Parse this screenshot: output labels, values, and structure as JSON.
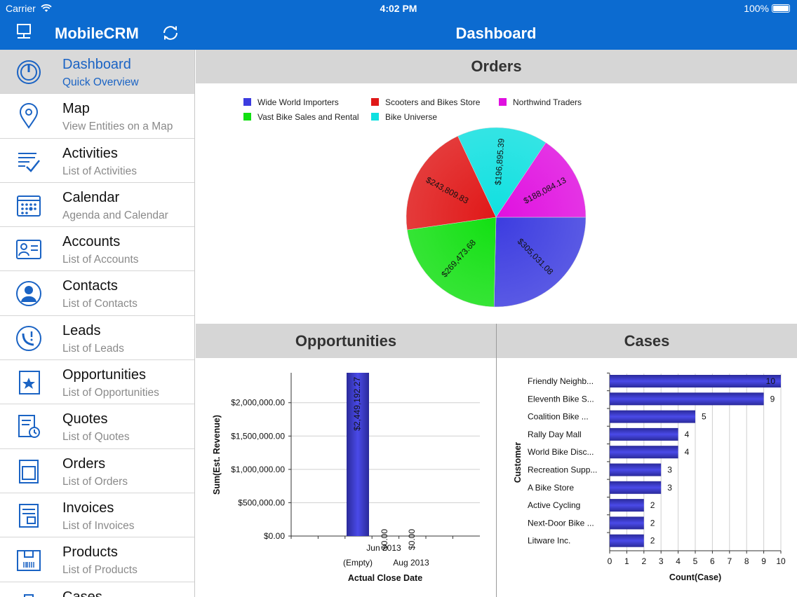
{
  "status": {
    "carrier": "Carrier",
    "time": "4:02 PM",
    "battery": "100%"
  },
  "nav": {
    "app_name": "MobileCRM",
    "page_title": "Dashboard"
  },
  "sidebar": {
    "items": [
      {
        "title": "Dashboard",
        "subtitle": "Quick Overview",
        "icon": "dashboard-icon"
      },
      {
        "title": "Map",
        "subtitle": "View Entities on a Map",
        "icon": "map-pin-icon"
      },
      {
        "title": "Activities",
        "subtitle": "List of Activities",
        "icon": "activities-icon"
      },
      {
        "title": "Calendar",
        "subtitle": "Agenda and Calendar",
        "icon": "calendar-icon"
      },
      {
        "title": "Accounts",
        "subtitle": "List of Accounts",
        "icon": "accounts-icon"
      },
      {
        "title": "Contacts",
        "subtitle": "List of Contacts",
        "icon": "contact-icon"
      },
      {
        "title": "Leads",
        "subtitle": "List of Leads",
        "icon": "leads-icon"
      },
      {
        "title": "Opportunities",
        "subtitle": "List of Opportunities",
        "icon": "opportunities-icon"
      },
      {
        "title": "Quotes",
        "subtitle": "List of Quotes",
        "icon": "quotes-icon"
      },
      {
        "title": "Orders",
        "subtitle": "List of Orders",
        "icon": "orders-icon"
      },
      {
        "title": "Invoices",
        "subtitle": "List of Invoices",
        "icon": "invoices-icon"
      },
      {
        "title": "Products",
        "subtitle": "List of Products",
        "icon": "products-icon"
      },
      {
        "title": "Cases",
        "subtitle": "",
        "icon": "cases-icon"
      }
    ]
  },
  "panels": {
    "orders": "Orders",
    "opportunities": "Opportunities",
    "cases": "Cases"
  },
  "chart_data": [
    {
      "type": "pie",
      "title": "Orders",
      "legend": [
        "Wide World Importers",
        "Scooters and Bikes Store",
        "Northwind Traders",
        "Vast Bike Sales and Rental",
        "Bike Universe"
      ],
      "legend_position": "top",
      "slices": [
        {
          "name": "Wide World Importers",
          "value": 305031.08,
          "label": "$305,031.08",
          "color": "#3c3ce0"
        },
        {
          "name": "Vast Bike Sales and Rental",
          "value": 269473.68,
          "label": "$269,473.68",
          "color": "#12e012"
        },
        {
          "name": "Scooters and Bikes Store",
          "value": 243809.83,
          "label": "$243,809.83",
          "color": "#e01818"
        },
        {
          "name": "Bike Universe",
          "value": 196895.39,
          "label": "$196,895.39",
          "color": "#10e0e0"
        },
        {
          "name": "Northwind Traders",
          "value": 188084.13,
          "label": "$188,084.13",
          "color": "#e010e0"
        }
      ]
    },
    {
      "type": "bar",
      "title": "Opportunities",
      "xlabel": "Actual Close Date",
      "ylabel": "Sum(Est. Revenue)",
      "ylim": [
        0,
        2449192.27
      ],
      "yticks": [
        "$0.00",
        "$500,000.00",
        "$1,000,000.00",
        "$1,500,000.00",
        "$2,000,000.00"
      ],
      "ytick_values": [
        0,
        500000,
        1000000,
        1500000,
        2000000
      ],
      "categories": [
        "(Empty)",
        "Jun 2013",
        "Aug 2013"
      ],
      "values": [
        2449192.27,
        0,
        0
      ],
      "value_labels": [
        "$2,449,192.27",
        "$0.00",
        "$0.00"
      ],
      "grid": true
    },
    {
      "type": "bar",
      "orientation": "horizontal",
      "title": "Cases",
      "xlabel": "Count(Case)",
      "ylabel": "Customer",
      "xlim": [
        0,
        10
      ],
      "xticks": [
        "0",
        "1",
        "2",
        "3",
        "4",
        "5",
        "6",
        "7",
        "8",
        "9",
        "10"
      ],
      "categories": [
        "Friendly Neighb...",
        "Eleventh Bike S...",
        "Coalition Bike ...",
        "Rally Day Mall",
        "World Bike Disc...",
        "Recreation Supp...",
        "A Bike Store",
        "Active Cycling",
        "Next-Door Bike ...",
        "Litware Inc."
      ],
      "values": [
        10,
        9,
        5,
        4,
        4,
        3,
        3,
        2,
        2,
        2
      ],
      "grid": true
    }
  ]
}
